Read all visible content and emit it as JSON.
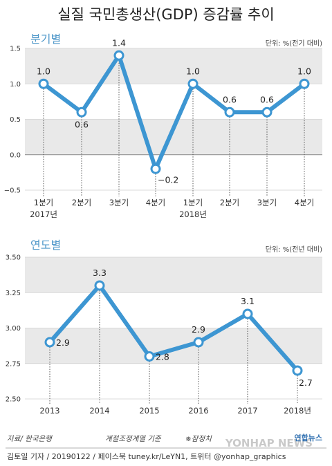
{
  "title": "실질 국민총생산(GDP) 증감률 추이",
  "accent": "#3d96d2",
  "chart_data": [
    {
      "type": "line",
      "section_label": "분기별",
      "unit": "단위: %(전기 대비)",
      "categories": [
        "1분기",
        "2분기",
        "3분기",
        "4분기",
        "1분기",
        "2분기",
        "3분기",
        "4분기"
      ],
      "year_labels": [
        "2017년",
        "2018년"
      ],
      "values": [
        1.0,
        0.6,
        1.4,
        -0.2,
        1.0,
        0.6,
        0.6,
        1.0
      ],
      "value_labels": [
        "1.0",
        "0.6",
        "1.4",
        "−0.2",
        "1.0",
        "0.6",
        "0.6",
        "1.0"
      ],
      "ylim": [
        -0.5,
        1.5
      ],
      "yticks": [
        "1.5",
        "1.0",
        "0.5",
        "0.0",
        "−0.5"
      ],
      "grid": true
    },
    {
      "type": "line",
      "section_label": "연도별",
      "unit": "단위: %(전년 대비)",
      "categories": [
        "2013",
        "2014",
        "2015",
        "2016",
        "2017",
        "2018년"
      ],
      "values": [
        2.9,
        3.3,
        2.8,
        2.9,
        3.1,
        2.7
      ],
      "value_labels": [
        "2.9",
        "3.3",
        "2.8",
        "2.9",
        "3.1",
        "2.7"
      ],
      "ylim": [
        2.5,
        3.5
      ],
      "yticks": [
        "3.50",
        "3.25",
        "3.00",
        "2.75",
        "2.50"
      ],
      "grid": true
    }
  ],
  "footer": {
    "source": "자료/ 한국은행",
    "note": "계절조정계열 기준",
    "prelim": "※잠정치",
    "credit": "김토일 기자 / 20190122 / 페이스북 tuney.kr/LeYN1, 트위터 @yonhap_graphics",
    "logo": "연합뉴스",
    "watermark": "YONHAP NEWS"
  }
}
